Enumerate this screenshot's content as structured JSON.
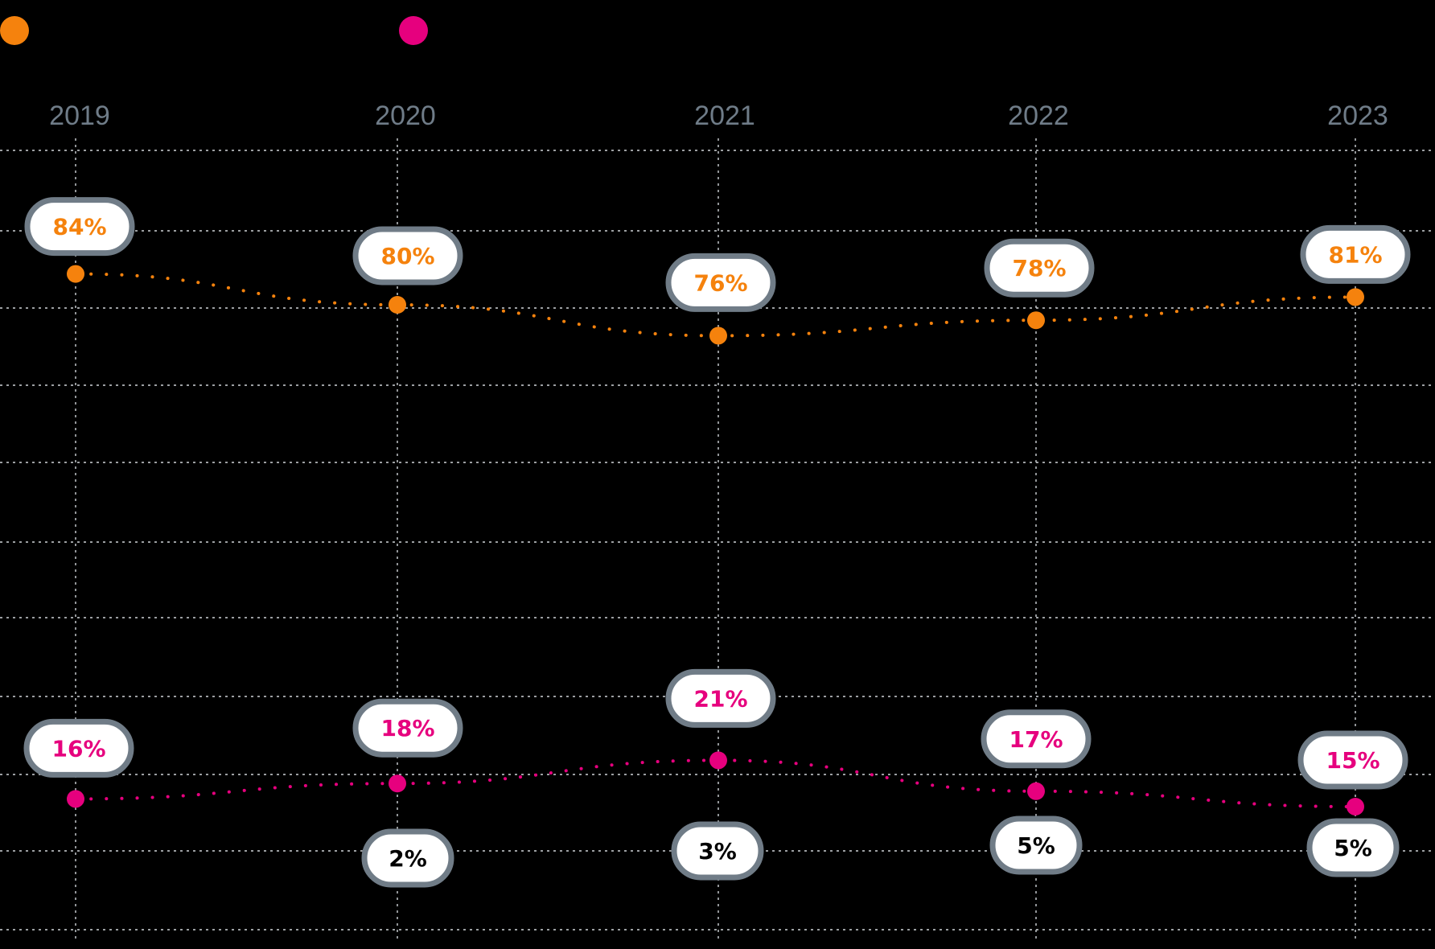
{
  "chart_data": {
    "type": "line",
    "categories": [
      "2019",
      "2020",
      "2021",
      "2022",
      "2023"
    ],
    "ylim": [
      0,
      100
    ],
    "grid": true,
    "series": [
      {
        "values": [
          84,
          80,
          76,
          78,
          81
        ],
        "labels": [
          "84%",
          "80%",
          "76%",
          "78%",
          "81%"
        ],
        "color": "#f5820d",
        "line_style": "dotted"
      },
      {
        "values": [
          16,
          18,
          21,
          17,
          15
        ],
        "labels": [
          "16%",
          "18%",
          "21%",
          "17%",
          "15%"
        ],
        "color": "#e6007e",
        "line_style": "dotted"
      }
    ],
    "extra_values": {
      "categories": [
        "2020",
        "2021",
        "2022",
        "2023"
      ],
      "values": [
        2,
        3,
        5,
        5
      ],
      "labels": [
        "2%",
        "3%",
        "5%",
        "5%"
      ],
      "color": "#000000"
    },
    "legend": {
      "position": "top-left",
      "markers": [
        {
          "color": "#f5820d"
        },
        {
          "color": "#e6007e"
        }
      ]
    },
    "colors": {
      "background": "#000000",
      "grid": "#cfd4d8",
      "pill_fill": "#ffffff",
      "pill_border": "#707c87",
      "year_label": "#6f7c88"
    }
  }
}
